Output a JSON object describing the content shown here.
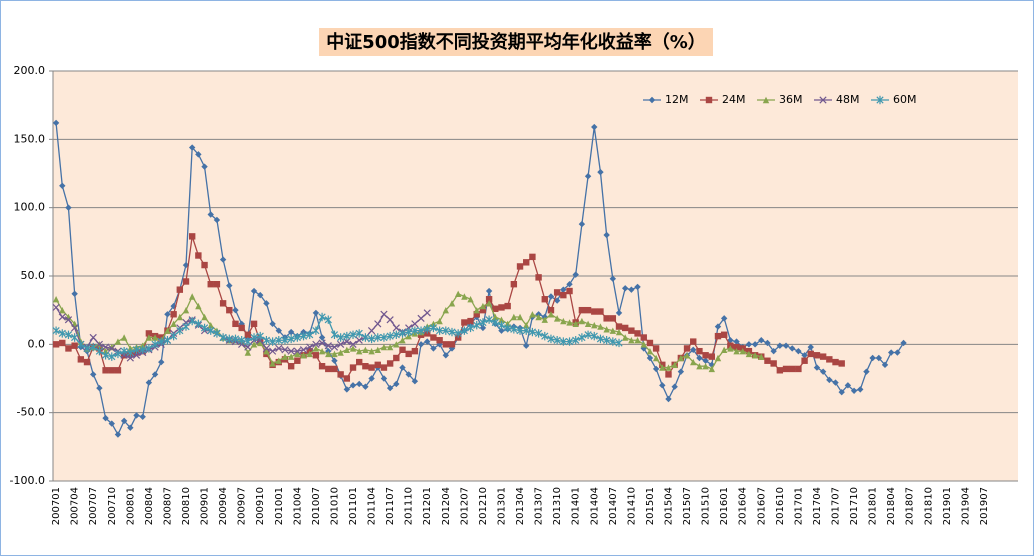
{
  "chart_data": {
    "type": "line",
    "title": "中证500指数不同投资期平均年化收益率（%）",
    "categories": [
      "200701",
      null,
      null,
      "200704",
      null,
      null,
      "200707",
      null,
      null,
      "200710",
      null,
      null,
      "200801",
      null,
      null,
      "200804",
      null,
      null,
      "200807",
      null,
      null,
      "200810",
      null,
      null,
      "200901",
      null,
      null,
      "200904",
      null,
      null,
      "200907",
      null,
      null,
      "200910",
      null,
      null,
      "201001",
      null,
      null,
      "201004",
      null,
      null,
      "201007",
      null,
      null,
      "201010",
      null,
      null,
      "201101",
      null,
      null,
      "201104",
      null,
      null,
      "201107",
      null,
      null,
      "201110",
      null,
      null,
      "201201",
      null,
      null,
      "201204",
      null,
      null,
      "201207",
      null,
      null,
      "201210",
      null,
      null,
      "201301",
      null,
      null,
      "201304",
      null,
      null,
      "201307",
      null,
      null,
      "201310",
      null,
      null,
      "201401",
      null,
      null,
      "201404",
      null,
      null,
      "201407",
      null,
      null,
      "201410",
      null,
      null,
      "201501",
      null,
      null,
      "201504",
      null,
      null,
      "201507",
      null,
      null,
      "201510",
      null,
      null,
      "201601",
      null,
      null,
      "201604",
      null,
      null,
      "201607",
      null,
      null,
      "201610",
      null,
      null,
      "201701",
      null,
      null,
      "201704",
      null,
      null,
      "201707",
      null,
      null,
      "201710",
      null,
      null,
      "201801",
      null,
      null,
      "201804",
      null,
      null,
      "201807",
      null,
      null,
      "201810",
      null,
      null,
      "201901",
      null,
      null,
      "201904",
      null,
      null,
      "201907",
      null,
      null,
      null,
      null,
      null
    ],
    "series": [
      {
        "name": "12M",
        "color": "#4572a7",
        "marker": "diamond",
        "values": [
          162,
          116,
          100,
          37,
          -2,
          -5,
          -22,
          -32,
          -54,
          -58,
          -66,
          -56,
          -61,
          -52,
          -53,
          -28,
          -22,
          -13,
          22,
          28,
          40,
          58,
          144,
          139,
          130,
          95,
          91,
          62,
          43,
          25,
          15,
          5,
          39,
          36,
          30,
          15,
          10,
          5,
          9,
          6,
          9,
          8,
          23,
          5,
          -5,
          -12,
          -23,
          -33,
          -30,
          -29,
          -31,
          -25,
          -17,
          -25,
          -32,
          -29,
          -17,
          -22,
          -27,
          0,
          2,
          -3,
          0,
          -8,
          -3,
          5,
          10,
          15,
          20,
          12,
          39,
          15,
          10,
          11,
          13,
          12,
          -1,
          20,
          22,
          20,
          35,
          32,
          40,
          44,
          51,
          88,
          123,
          159,
          126,
          80,
          48,
          23,
          41,
          40,
          42,
          -3,
          -10,
          -18,
          -30,
          -40,
          -31,
          -20,
          -8,
          -4,
          -10,
          -12,
          -15,
          13,
          19,
          3,
          2,
          -2,
          0,
          0,
          3,
          1,
          -5,
          -1,
          -1,
          -3,
          -5,
          -8,
          -2,
          -17,
          -20,
          -26,
          -28,
          -35,
          -30,
          -34,
          -33,
          -20,
          -10,
          -10,
          -15,
          -6,
          -6,
          1,
          null,
          null,
          null,
          null,
          null,
          null,
          null,
          null,
          null,
          null,
          null,
          null,
          null,
          null,
          null,
          null,
          null,
          null
        ]
      },
      {
        "name": "24M",
        "color": "#aa4643",
        "marker": "square",
        "values": [
          0,
          1,
          -3,
          -1,
          -11,
          -13,
          -2,
          -3,
          -19,
          -19,
          -19,
          -8,
          -7,
          -6,
          -5,
          8,
          6,
          5,
          10,
          22,
          40,
          46,
          79,
          65,
          58,
          44,
          44,
          30,
          25,
          15,
          12,
          7,
          15,
          2,
          -7,
          -15,
          -13,
          -11,
          -16,
          -12,
          -8,
          -5,
          -8,
          -16,
          -18,
          -18,
          -22,
          -25,
          -17,
          -13,
          -16,
          -17,
          -15,
          -17,
          -14,
          -10,
          -4,
          -7,
          -5,
          7,
          8,
          5,
          3,
          0,
          0,
          5,
          16,
          17,
          22,
          25,
          33,
          26,
          27,
          28,
          44,
          57,
          60,
          64,
          49,
          33,
          25,
          38,
          36,
          39,
          16,
          25,
          25,
          24,
          24,
          19,
          19,
          13,
          12,
          10,
          8,
          5,
          1,
          -3,
          -15,
          -22,
          -15,
          -10,
          -3,
          2,
          -5,
          -8,
          -9,
          6,
          7,
          -1,
          -2,
          -3,
          -5,
          -8,
          -9,
          -12,
          -14,
          -19,
          -18,
          -18,
          -18,
          -12,
          -7,
          -8,
          -9,
          -11,
          -13,
          -14,
          null,
          null,
          null,
          null,
          null,
          null,
          null,
          null,
          null,
          null,
          null,
          null,
          null,
          null,
          null,
          null,
          null,
          null,
          null,
          null,
          null,
          null,
          null,
          null,
          null,
          null,
          null,
          null
        ]
      },
      {
        "name": "36M",
        "color": "#89a54e",
        "marker": "triangle",
        "values": [
          33,
          25,
          20,
          15,
          2,
          -3,
          -2,
          0,
          -5,
          -2,
          2,
          5,
          -3,
          -2,
          -1,
          5,
          5,
          3,
          10,
          15,
          20,
          25,
          35,
          28,
          20,
          14,
          10,
          5,
          3,
          3,
          2,
          -6,
          0,
          1,
          -5,
          -14,
          -12,
          -9,
          -9,
          -7,
          -8,
          -7,
          -3,
          -5,
          -7,
          -7,
          -6,
          -4,
          -3,
          -5,
          -4,
          -5,
          -4,
          -2,
          -2,
          0,
          3,
          6,
          8,
          9,
          13,
          15,
          17,
          25,
          30,
          37,
          35,
          33,
          25,
          28,
          30,
          20,
          18,
          15,
          20,
          20,
          14,
          22,
          20,
          18,
          22,
          19,
          17,
          16,
          15,
          17,
          15,
          14,
          13,
          11,
          10,
          9,
          5,
          3,
          3,
          0,
          -5,
          -10,
          -17,
          -17,
          -15,
          -10,
          -8,
          -13,
          -16,
          -16,
          -18,
          -10,
          -4,
          -3,
          -5,
          -5,
          -7,
          -8,
          -9,
          null,
          null,
          null,
          null,
          null,
          null,
          null,
          null,
          null,
          null,
          null,
          null,
          null,
          null,
          null,
          null,
          null,
          null,
          null,
          null,
          null,
          null,
          null,
          null,
          null,
          null,
          null,
          null,
          null,
          null,
          null,
          null,
          null,
          null,
          null,
          null,
          null,
          null,
          null,
          null,
          null
        ]
      },
      {
        "name": "48M",
        "color": "#71588f",
        "marker": "cross",
        "values": [
          27,
          20,
          18,
          12,
          0,
          -2,
          5,
          0,
          -2,
          -3,
          -5,
          -8,
          -10,
          -8,
          -6,
          -4,
          -2,
          0,
          3,
          8,
          12,
          16,
          18,
          14,
          10,
          10,
          8,
          5,
          3,
          2,
          0,
          -2,
          3,
          3,
          -3,
          -5,
          -3,
          -4,
          -5,
          -5,
          -4,
          -2,
          0,
          1,
          -1,
          -2,
          0,
          2,
          0,
          3,
          5,
          10,
          15,
          22,
          18,
          12,
          9,
          12,
          15,
          19,
          23,
          null,
          null,
          null,
          null,
          null,
          null,
          null,
          null,
          null,
          null,
          null,
          null,
          null,
          null,
          null,
          null,
          null,
          null,
          null,
          null,
          null,
          null,
          null,
          null,
          null,
          null,
          null,
          null,
          null,
          null,
          null,
          null,
          null,
          null,
          null,
          null,
          null,
          null,
          null,
          null,
          null,
          null,
          null,
          null,
          null,
          null,
          null,
          null,
          null,
          null,
          null,
          null,
          null,
          null,
          null,
          null,
          null,
          null,
          null,
          null,
          null,
          null,
          null,
          null,
          null,
          null,
          null,
          null,
          null,
          null,
          null,
          null,
          null,
          null,
          null,
          null,
          null,
          null,
          null,
          null,
          null,
          null,
          null,
          null,
          null,
          null,
          null,
          null,
          null,
          null,
          null,
          null,
          null,
          null,
          null
        ]
      },
      {
        "name": "60M",
        "color": "#4198af",
        "marker": "star",
        "values": [
          10,
          8,
          7,
          5,
          0,
          -3,
          -2,
          -5,
          -8,
          -9,
          -7,
          -5,
          -6,
          -4,
          -4,
          -3,
          0,
          2,
          3,
          6,
          10,
          13,
          17,
          15,
          12,
          10,
          8,
          5,
          4,
          4,
          3,
          2,
          5,
          6,
          3,
          2,
          3,
          3,
          4,
          5,
          6,
          7,
          10,
          20,
          18,
          7,
          5,
          6,
          7,
          8,
          5,
          4,
          5,
          5,
          6,
          7,
          8,
          9,
          10,
          10,
          11,
          12,
          10,
          10,
          9,
          8,
          10,
          12,
          14,
          16,
          18,
          16,
          14,
          12,
          11,
          10,
          10,
          9,
          8,
          6,
          4,
          3,
          2,
          2,
          3,
          5,
          7,
          6,
          4,
          3,
          2,
          1,
          null,
          null,
          null,
          null,
          null,
          null,
          null,
          null,
          null,
          null,
          null,
          null,
          null,
          null,
          null,
          null,
          null,
          null,
          null,
          null,
          null,
          null,
          null,
          null,
          null,
          null,
          null,
          null,
          null,
          null,
          null,
          null,
          null,
          null,
          null,
          null,
          null,
          null,
          null,
          null,
          null,
          null,
          null,
          null,
          null,
          null,
          null,
          null,
          null,
          null,
          null,
          null,
          null,
          null,
          null,
          null,
          null,
          null,
          null,
          null,
          null,
          null,
          null,
          null
        ]
      }
    ],
    "ylim": [
      -100,
      200
    ],
    "yticks": [
      {
        "value": -100,
        "label": "-100.0"
      },
      {
        "value": -50,
        "label": "-50.0"
      },
      {
        "value": 0,
        "label": "0.0"
      },
      {
        "value": 50,
        "label": "50.0"
      },
      {
        "value": 100,
        "label": "100.0"
      },
      {
        "value": 150,
        "label": "150.0"
      },
      {
        "value": 200,
        "label": "200.0"
      }
    ],
    "grid": true
  }
}
